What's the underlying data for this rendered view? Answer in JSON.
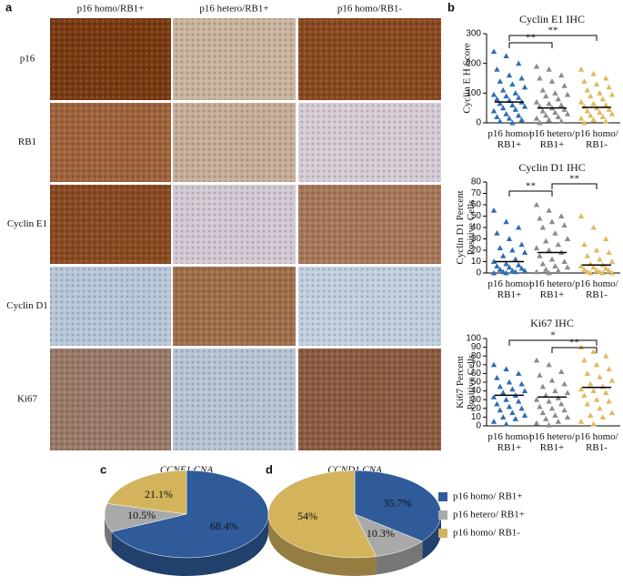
{
  "figure": {
    "panel_labels": [
      "a",
      "b",
      "c",
      "d"
    ],
    "column_headers": [
      "p16 homo/RB1+",
      "p16 hetero/RB1+",
      "p16 homo/RB1-"
    ],
    "row_labels": [
      "p16",
      "RB1",
      "Cyclin E1",
      "Cyclin D1",
      "Ki67"
    ],
    "legend": [
      "p16 homo/ RB1+",
      "p16 hetero/ RB1+",
      "p16 homo/ RB1-"
    ]
  },
  "chart_data": [
    {
      "type": "strip",
      "title": "Cyclin E1 IHC",
      "y_label": "Cyclin E H Score",
      "categories": [
        "p16 homo/RB1+",
        "p16 hetero/RB1+",
        "p16 homo/RB1-"
      ],
      "series": [
        {
          "color": "#2e6db4",
          "values": [
            240,
            225,
            200,
            180,
            160,
            150,
            140,
            130,
            120,
            110,
            100,
            95,
            90,
            85,
            80,
            75,
            70,
            65,
            60,
            55,
            50,
            45,
            40,
            30,
            25,
            20,
            15,
            10,
            5,
            0
          ],
          "mean": 70
        },
        {
          "color": "#8c8c8c",
          "values": [
            190,
            180,
            160,
            150,
            140,
            125,
            110,
            100,
            95,
            90,
            80,
            70,
            65,
            60,
            55,
            50,
            45,
            40,
            35,
            30,
            25,
            20,
            15,
            10,
            5,
            0
          ],
          "mean": 50
        },
        {
          "color": "#e1b95c",
          "values": [
            180,
            165,
            150,
            140,
            130,
            120,
            110,
            100,
            95,
            90,
            80,
            70,
            65,
            60,
            55,
            50,
            45,
            40,
            35,
            30,
            25,
            20,
            15,
            10,
            5,
            0
          ],
          "mean": 52
        }
      ],
      "ylim": [
        0,
        300
      ],
      "yticks": [
        0,
        100,
        200,
        300
      ],
      "brackets": [
        {
          "from": 0,
          "to": 1,
          "label": "**"
        },
        {
          "from": 0,
          "to": 2,
          "label": "**"
        }
      ]
    },
    {
      "type": "strip",
      "title": "Cyclin D1 IHC",
      "y_label": "Cyclin D1 Percent Positive Cells",
      "categories": [
        "p16 homo/RB1+",
        "p16 hetero/RB1+",
        "p16 homo/RB1-"
      ],
      "series": [
        {
          "color": "#2e6db4",
          "values": [
            55,
            45,
            40,
            35,
            30,
            25,
            22,
            20,
            18,
            15,
            12,
            10,
            8,
            7,
            6,
            5,
            4,
            3,
            2,
            2,
            1,
            1,
            0,
            0
          ],
          "mean": 10
        },
        {
          "color": "#8c8c8c",
          "values": [
            60,
            55,
            50,
            48,
            45,
            42,
            40,
            35,
            30,
            28,
            25,
            22,
            20,
            18,
            15,
            12,
            10,
            8,
            6,
            5,
            3,
            2,
            1,
            0
          ],
          "mean": 18
        },
        {
          "color": "#e1b95c",
          "values": [
            50,
            40,
            30,
            25,
            20,
            18,
            15,
            12,
            10,
            8,
            7,
            6,
            5,
            4,
            3,
            2,
            2,
            1,
            1,
            0,
            0,
            0
          ],
          "mean": 7
        }
      ],
      "ylim": [
        0,
        80
      ],
      "yticks": [
        0,
        10,
        20,
        30,
        40,
        50,
        60,
        70,
        80
      ],
      "brackets": [
        {
          "from": 0,
          "to": 1,
          "label": "**"
        },
        {
          "from": 1,
          "to": 2,
          "label": "**"
        }
      ]
    },
    {
      "type": "strip",
      "title": "Ki67 IHC",
      "y_label": "Ki67 Percent Positive Cells",
      "categories": [
        "p16 homo/RB1+",
        "p16 hetero/RB1+",
        "p16 homo/RB1-"
      ],
      "series": [
        {
          "color": "#2e6db4",
          "values": [
            70,
            65,
            60,
            55,
            50,
            48,
            45,
            42,
            40,
            38,
            35,
            33,
            30,
            28,
            25,
            22,
            20,
            18,
            15,
            12,
            10,
            8,
            5,
            2
          ],
          "mean": 35
        },
        {
          "color": "#8c8c8c",
          "values": [
            75,
            70,
            62,
            58,
            52,
            48,
            45,
            40,
            38,
            35,
            32,
            30,
            28,
            25,
            22,
            20,
            18,
            15,
            12,
            10,
            8,
            5,
            3,
            1
          ],
          "mean": 33
        },
        {
          "color": "#e1b95c",
          "values": [
            90,
            85,
            80,
            75,
            70,
            65,
            60,
            56,
            52,
            48,
            45,
            42,
            40,
            38,
            35,
            30,
            28,
            25,
            20,
            15,
            12,
            10,
            5,
            2
          ],
          "mean": 44
        }
      ],
      "ylim": [
        0,
        100
      ],
      "yticks": [
        0,
        10,
        20,
        30,
        40,
        50,
        60,
        70,
        80,
        90,
        100
      ],
      "brackets": [
        {
          "from": 1,
          "to": 2,
          "label": "**"
        },
        {
          "from": 0,
          "to": 2,
          "label": "*"
        }
      ]
    },
    {
      "type": "pie",
      "title": "CCNE1 CNA",
      "values": [
        68.4,
        10.5,
        21.1
      ],
      "value_labels": [
        "68.4%",
        "10.5%",
        "21.1%"
      ],
      "colors": [
        "#2f5b9a",
        "#a9a9a9",
        "#d3b35c"
      ]
    },
    {
      "type": "pie",
      "title": "CCND1 CNA",
      "values": [
        35.7,
        10.3,
        54
      ],
      "value_labels": [
        "35.7%",
        "10.3%",
        "54%"
      ],
      "colors": [
        "#2f5b9a",
        "#a9a9a9",
        "#d3b35c"
      ]
    }
  ]
}
